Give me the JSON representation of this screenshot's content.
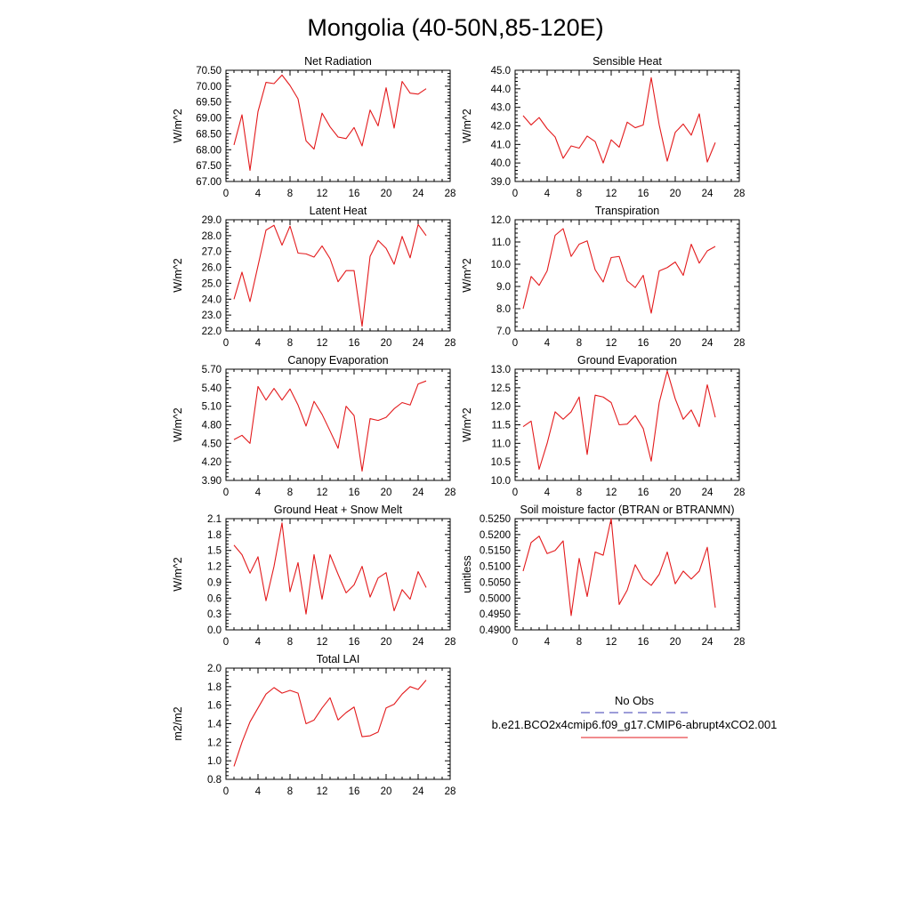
{
  "title": "Mongolia (40-50N,85-120E)",
  "legend": {
    "entries": [
      {
        "label": "No Obs",
        "color": "#3b3bb3",
        "style": "dashed"
      },
      {
        "label": "b.e21.BCO2x4cmip6.f09_g17.CMIP6-abrupt4xCO2.001",
        "color": "#e31a1c",
        "style": "solid"
      }
    ]
  },
  "line_color": "#e31a1c",
  "chart_data": [
    {
      "type": "line",
      "title": "Net Radiation",
      "xlabel": "",
      "ylabel": "W/m^2",
      "xlim": [
        0,
        28
      ],
      "xticks": [
        0,
        4,
        8,
        12,
        16,
        20,
        24,
        28
      ],
      "ylim": [
        67.0,
        70.5
      ],
      "yticks": [
        "67.00",
        "67.50",
        "68.00",
        "68.50",
        "69.00",
        "69.50",
        "70.00",
        "70.50"
      ],
      "x": [
        1,
        2,
        3,
        4,
        5,
        6,
        7,
        8,
        9,
        10,
        11,
        12,
        13,
        14,
        15,
        16,
        17,
        18,
        19,
        20,
        21,
        22,
        23,
        24,
        25
      ],
      "values": [
        68.15,
        69.1,
        67.35,
        69.2,
        70.12,
        70.08,
        70.35,
        70.02,
        69.6,
        68.28,
        68.02,
        69.15,
        68.72,
        68.4,
        68.35,
        68.7,
        68.12,
        69.25,
        68.75,
        69.95,
        68.68,
        70.15,
        69.78,
        69.75,
        69.92
      ]
    },
    {
      "type": "line",
      "title": "Sensible Heat",
      "xlabel": "",
      "ylabel": "W/m^2",
      "xlim": [
        0,
        28
      ],
      "xticks": [
        0,
        4,
        8,
        12,
        16,
        20,
        24,
        28
      ],
      "ylim": [
        39.0,
        45.0
      ],
      "yticks": [
        "39.0",
        "40.0",
        "41.0",
        "42.0",
        "43.0",
        "44.0",
        "45.0"
      ],
      "x": [
        1,
        2,
        3,
        4,
        5,
        6,
        7,
        8,
        9,
        10,
        11,
        12,
        13,
        14,
        15,
        16,
        17,
        18,
        19,
        20,
        21,
        22,
        23,
        24,
        25
      ],
      "values": [
        42.55,
        42.05,
        42.45,
        41.85,
        41.4,
        40.25,
        40.92,
        40.8,
        41.45,
        41.15,
        40.0,
        41.25,
        40.85,
        42.2,
        41.9,
        42.05,
        44.6,
        42.05,
        40.1,
        41.65,
        42.1,
        41.5,
        42.65,
        40.05,
        41.1
      ]
    },
    {
      "type": "line",
      "title": "Latent Heat",
      "xlabel": "",
      "ylabel": "W/m^2",
      "xlim": [
        0,
        28
      ],
      "xticks": [
        0,
        4,
        8,
        12,
        16,
        20,
        24,
        28
      ],
      "ylim": [
        22.0,
        29.0
      ],
      "yticks": [
        "22.0",
        "23.0",
        "24.0",
        "25.0",
        "26.0",
        "27.0",
        "28.0",
        "29.0"
      ],
      "x": [
        1,
        2,
        3,
        4,
        5,
        6,
        7,
        8,
        9,
        10,
        11,
        12,
        13,
        14,
        15,
        16,
        17,
        18,
        19,
        20,
        21,
        22,
        23,
        24,
        25
      ],
      "values": [
        24.0,
        25.7,
        23.85,
        26.1,
        28.35,
        28.65,
        27.4,
        28.6,
        26.9,
        26.85,
        26.65,
        27.35,
        26.55,
        25.1,
        25.8,
        25.8,
        22.3,
        26.7,
        27.7,
        27.2,
        26.2,
        27.95,
        26.6,
        28.7,
        28.0
      ]
    },
    {
      "type": "line",
      "title": "Transpiration",
      "xlabel": "",
      "ylabel": "W/m^2",
      "xlim": [
        0,
        28
      ],
      "xticks": [
        0,
        4,
        8,
        12,
        16,
        20,
        24,
        28
      ],
      "ylim": [
        7.0,
        12.0
      ],
      "yticks": [
        "7.0",
        "8.0",
        "9.0",
        "10.0",
        "11.0",
        "12.0"
      ],
      "x": [
        1,
        2,
        3,
        4,
        5,
        6,
        7,
        8,
        9,
        10,
        11,
        12,
        13,
        14,
        15,
        16,
        17,
        18,
        19,
        20,
        21,
        22,
        23,
        24,
        25
      ],
      "values": [
        8.0,
        9.45,
        9.05,
        9.7,
        11.3,
        11.6,
        10.35,
        10.9,
        11.05,
        9.75,
        9.2,
        10.3,
        10.35,
        9.25,
        8.95,
        9.5,
        7.8,
        9.7,
        9.85,
        10.1,
        9.5,
        10.9,
        10.05,
        10.6,
        10.8
      ]
    },
    {
      "type": "line",
      "title": "Canopy Evaporation",
      "xlabel": "",
      "ylabel": "W/m^2",
      "xlim": [
        0,
        28
      ],
      "xticks": [
        0,
        4,
        8,
        12,
        16,
        20,
        24,
        28
      ],
      "ylim": [
        3.9,
        5.7
      ],
      "yticks": [
        "3.90",
        "4.20",
        "4.50",
        "4.80",
        "5.10",
        "5.40",
        "5.70"
      ],
      "x": [
        1,
        2,
        3,
        4,
        5,
        6,
        7,
        8,
        9,
        10,
        11,
        12,
        13,
        14,
        15,
        16,
        17,
        18,
        19,
        20,
        21,
        22,
        23,
        24,
        25
      ],
      "values": [
        4.56,
        4.63,
        4.5,
        5.42,
        5.2,
        5.39,
        5.2,
        5.38,
        5.12,
        4.78,
        5.18,
        4.97,
        4.7,
        4.42,
        5.1,
        4.95,
        4.05,
        4.9,
        4.87,
        4.92,
        5.06,
        5.16,
        5.12,
        5.46,
        5.51
      ]
    },
    {
      "type": "line",
      "title": "Ground Evaporation",
      "xlabel": "",
      "ylabel": "W/m^2",
      "xlim": [
        0,
        28
      ],
      "xticks": [
        0,
        4,
        8,
        12,
        16,
        20,
        24,
        28
      ],
      "ylim": [
        10.0,
        13.0
      ],
      "yticks": [
        "10.0",
        "10.5",
        "11.0",
        "11.5",
        "12.0",
        "12.5",
        "13.0"
      ],
      "x": [
        1,
        2,
        3,
        4,
        5,
        6,
        7,
        8,
        9,
        10,
        11,
        12,
        13,
        14,
        15,
        16,
        17,
        18,
        19,
        20,
        21,
        22,
        23,
        24,
        25
      ],
      "values": [
        11.45,
        11.6,
        10.3,
        11.0,
        11.85,
        11.65,
        11.85,
        12.25,
        10.7,
        12.3,
        12.25,
        12.1,
        11.5,
        11.52,
        11.75,
        11.4,
        10.52,
        12.1,
        12.95,
        12.2,
        11.65,
        11.9,
        11.45,
        12.58,
        11.7
      ]
    },
    {
      "type": "line",
      "title": "Ground Heat + Snow Melt",
      "xlabel": "",
      "ylabel": "W/m^2",
      "xlim": [
        0,
        28
      ],
      "xticks": [
        0,
        4,
        8,
        12,
        16,
        20,
        24,
        28
      ],
      "ylim": [
        0.0,
        2.1
      ],
      "yticks": [
        "0.0",
        "0.3",
        "0.6",
        "0.9",
        "1.2",
        "1.5",
        "1.8",
        "2.1"
      ],
      "x": [
        1,
        2,
        3,
        4,
        5,
        6,
        7,
        8,
        9,
        10,
        11,
        12,
        13,
        14,
        15,
        16,
        17,
        18,
        19,
        20,
        21,
        22,
        23,
        24,
        25
      ],
      "values": [
        1.6,
        1.42,
        1.07,
        1.38,
        0.55,
        1.2,
        2.02,
        0.72,
        1.27,
        0.3,
        1.42,
        0.58,
        1.42,
        1.05,
        0.7,
        0.85,
        1.2,
        0.62,
        0.98,
        1.08,
        0.36,
        0.76,
        0.58,
        1.1,
        0.8
      ]
    },
    {
      "type": "line",
      "title": "Soil moisture factor (BTRAN or BTRANMN)",
      "xlabel": "",
      "ylabel": "unitless",
      "xlim": [
        0,
        28
      ],
      "xticks": [
        0,
        4,
        8,
        12,
        16,
        20,
        24,
        28
      ],
      "ylim": [
        0.49,
        0.525
      ],
      "yticks": [
        "0.4900",
        "0.4950",
        "0.5000",
        "0.5050",
        "0.5100",
        "0.5150",
        "0.5200",
        "0.5250"
      ],
      "x": [
        1,
        2,
        3,
        4,
        5,
        6,
        7,
        8,
        9,
        10,
        11,
        12,
        13,
        14,
        15,
        16,
        17,
        18,
        19,
        20,
        21,
        22,
        23,
        24,
        25
      ],
      "values": [
        0.5085,
        0.5175,
        0.5195,
        0.514,
        0.515,
        0.518,
        0.4945,
        0.5125,
        0.5005,
        0.5145,
        0.5135,
        0.525,
        0.498,
        0.5025,
        0.5105,
        0.506,
        0.504,
        0.5075,
        0.5145,
        0.5045,
        0.5085,
        0.506,
        0.5085,
        0.516,
        0.497
      ]
    },
    {
      "type": "line",
      "title": "Total LAI",
      "xlabel": "",
      "ylabel": "m2/m2",
      "xlim": [
        0,
        28
      ],
      "xticks": [
        0,
        4,
        8,
        12,
        16,
        20,
        24,
        28
      ],
      "ylim": [
        0.8,
        2.0
      ],
      "yticks": [
        "0.8",
        "1.0",
        "1.2",
        "1.4",
        "1.6",
        "1.8",
        "2.0"
      ],
      "x": [
        1,
        2,
        3,
        4,
        5,
        6,
        7,
        8,
        9,
        10,
        11,
        12,
        13,
        14,
        15,
        16,
        17,
        18,
        19,
        20,
        21,
        22,
        23,
        24,
        25
      ],
      "values": [
        0.94,
        1.2,
        1.42,
        1.57,
        1.72,
        1.79,
        1.73,
        1.76,
        1.73,
        1.4,
        1.44,
        1.57,
        1.68,
        1.44,
        1.52,
        1.58,
        1.26,
        1.27,
        1.31,
        1.57,
        1.61,
        1.72,
        1.8,
        1.77,
        1.87
      ]
    }
  ]
}
